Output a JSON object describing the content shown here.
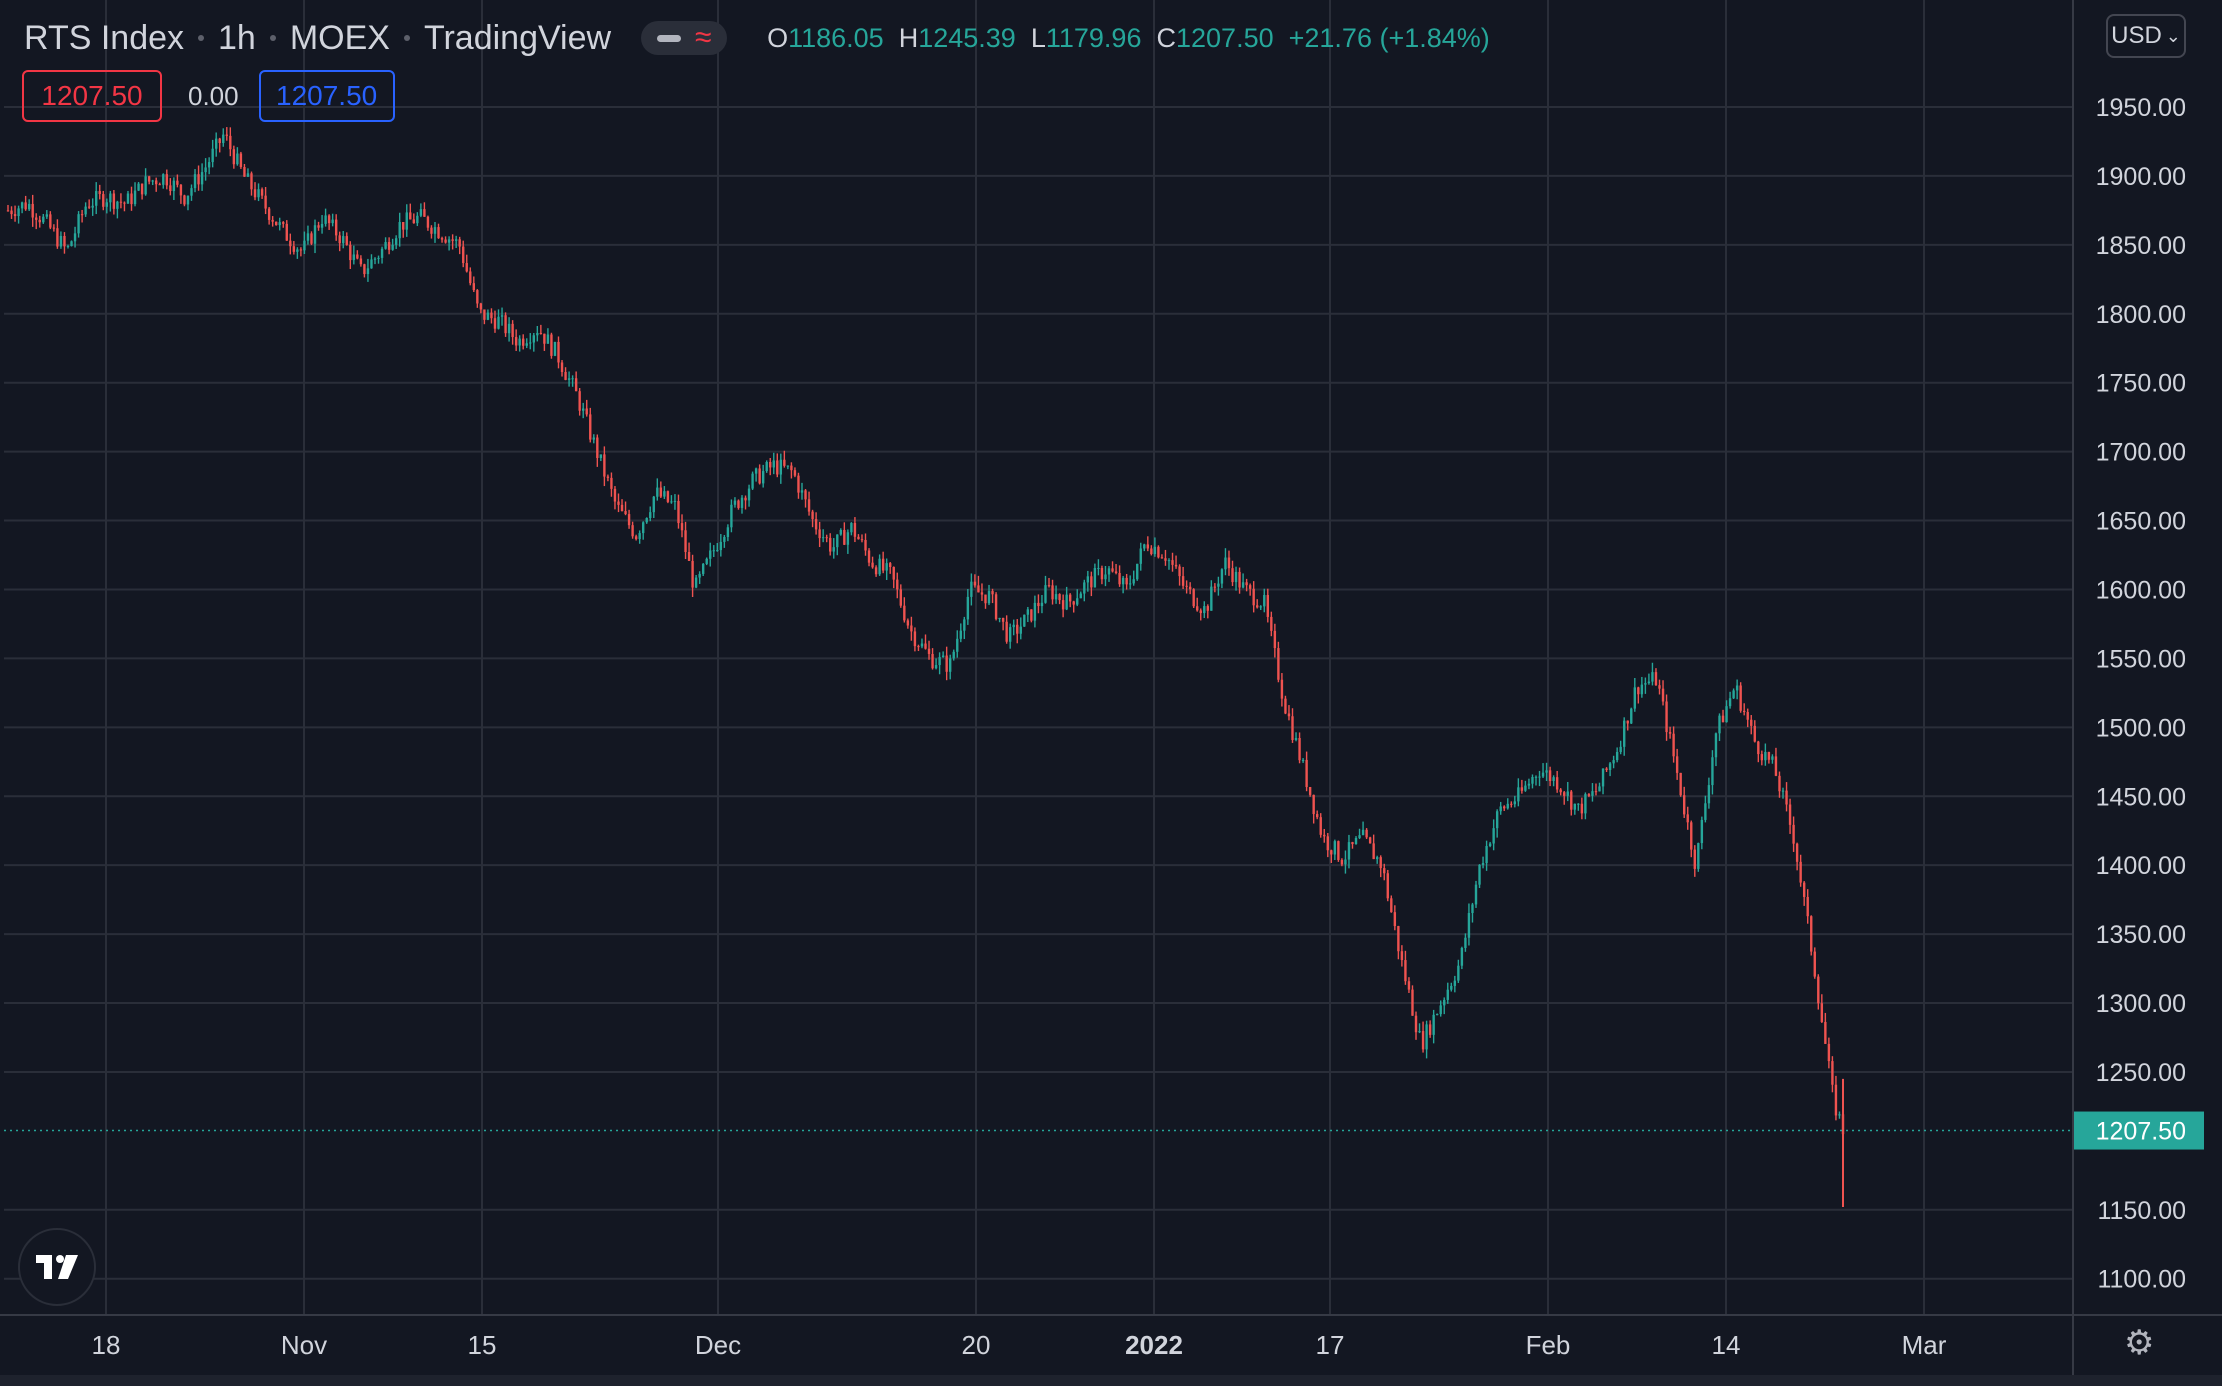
{
  "legend": {
    "symbol": "RTS Index",
    "interval": "1h",
    "exchange": "MOEX",
    "source": "TradingView",
    "o_label": "O",
    "o_value": "1186.05",
    "h_label": "H",
    "h_value": "1245.39",
    "l_label": "L",
    "l_value": "1179.96",
    "c_label": "C",
    "c_value": "1207.50",
    "change": "+21.76 (+1.84%)"
  },
  "inputs": {
    "sell": "1207.50",
    "spread": "0.00",
    "buy": "1207.50"
  },
  "currency": "USD",
  "icons": {
    "logo": "tradingview-logo-icon",
    "settings": "gear-icon",
    "dropdown": "chevron-down-icon"
  },
  "colors": {
    "background": "#131722",
    "grid": "#2a2e39",
    "up": "#26a69a",
    "down": "#ef5350",
    "accent": "#2962ff"
  },
  "chart_data": {
    "type": "candlestick",
    "title": "RTS Index, 1h, MOEX",
    "ylim": [
      1075,
      1985
    ],
    "y_ticks": [
      "1950.00",
      "1900.00",
      "1850.00",
      "1800.00",
      "1750.00",
      "1700.00",
      "1650.00",
      "1600.00",
      "1550.00",
      "1500.00",
      "1450.00",
      "1400.00",
      "1350.00",
      "1300.00",
      "1250.00",
      "1150.00",
      "1100.00"
    ],
    "x_ticks": [
      "18",
      "Nov",
      "15",
      "Dec",
      "20",
      "2022",
      "17",
      "Feb",
      "14",
      "Mar"
    ],
    "last_price": "1207.50",
    "grid": true,
    "series_close_estimated": [
      [
        0,
        1875
      ],
      [
        2,
        1880
      ],
      [
        4,
        1865
      ],
      [
        6,
        1845
      ],
      [
        8,
        1880
      ],
      [
        10,
        1885
      ],
      [
        12,
        1880
      ],
      [
        14,
        1895
      ],
      [
        16,
        1900
      ],
      [
        18,
        1885
      ],
      [
        20,
        1905
      ],
      [
        22,
        1930
      ],
      [
        24,
        1900
      ],
      [
        26,
        1880
      ],
      [
        28,
        1860
      ],
      [
        30,
        1845
      ],
      [
        32,
        1870
      ],
      [
        34,
        1855
      ],
      [
        36,
        1830
      ],
      [
        38,
        1845
      ],
      [
        40,
        1865
      ],
      [
        42,
        1870
      ],
      [
        44,
        1860
      ],
      [
        46,
        1850
      ],
      [
        48,
        1800
      ],
      [
        50,
        1795
      ],
      [
        52,
        1780
      ],
      [
        54,
        1790
      ],
      [
        56,
        1770
      ],
      [
        58,
        1740
      ],
      [
        60,
        1700
      ],
      [
        62,
        1660
      ],
      [
        64,
        1640
      ],
      [
        66,
        1670
      ],
      [
        68,
        1660
      ],
      [
        70,
        1600
      ],
      [
        72,
        1630
      ],
      [
        74,
        1660
      ],
      [
        76,
        1680
      ],
      [
        78,
        1690
      ],
      [
        80,
        1685
      ],
      [
        82,
        1650
      ],
      [
        84,
        1630
      ],
      [
        86,
        1645
      ],
      [
        88,
        1620
      ],
      [
        90,
        1610
      ],
      [
        92,
        1570
      ],
      [
        94,
        1550
      ],
      [
        96,
        1545
      ],
      [
        98,
        1600
      ],
      [
        100,
        1595
      ],
      [
        102,
        1565
      ],
      [
        104,
        1580
      ],
      [
        106,
        1600
      ],
      [
        108,
        1590
      ],
      [
        110,
        1605
      ],
      [
        112,
        1615
      ],
      [
        114,
        1600
      ],
      [
        116,
        1635
      ],
      [
        118,
        1625
      ],
      [
        120,
        1600
      ],
      [
        122,
        1585
      ],
      [
        124,
        1620
      ],
      [
        126,
        1600
      ],
      [
        128,
        1590
      ],
      [
        130,
        1520
      ],
      [
        132,
        1470
      ],
      [
        134,
        1420
      ],
      [
        136,
        1405
      ],
      [
        138,
        1420
      ],
      [
        140,
        1400
      ],
      [
        142,
        1330
      ],
      [
        144,
        1270
      ],
      [
        146,
        1300
      ],
      [
        148,
        1330
      ],
      [
        150,
        1400
      ],
      [
        152,
        1440
      ],
      [
        154,
        1450
      ],
      [
        156,
        1470
      ],
      [
        158,
        1460
      ],
      [
        160,
        1440
      ],
      [
        162,
        1455
      ],
      [
        164,
        1485
      ],
      [
        166,
        1530
      ],
      [
        168,
        1535
      ],
      [
        170,
        1470
      ],
      [
        172,
        1400
      ],
      [
        174,
        1495
      ],
      [
        176,
        1530
      ],
      [
        178,
        1490
      ],
      [
        180,
        1470
      ],
      [
        182,
        1420
      ],
      [
        184,
        1330
      ],
      [
        186,
        1230
      ],
      [
        187,
        1207.5
      ]
    ]
  }
}
